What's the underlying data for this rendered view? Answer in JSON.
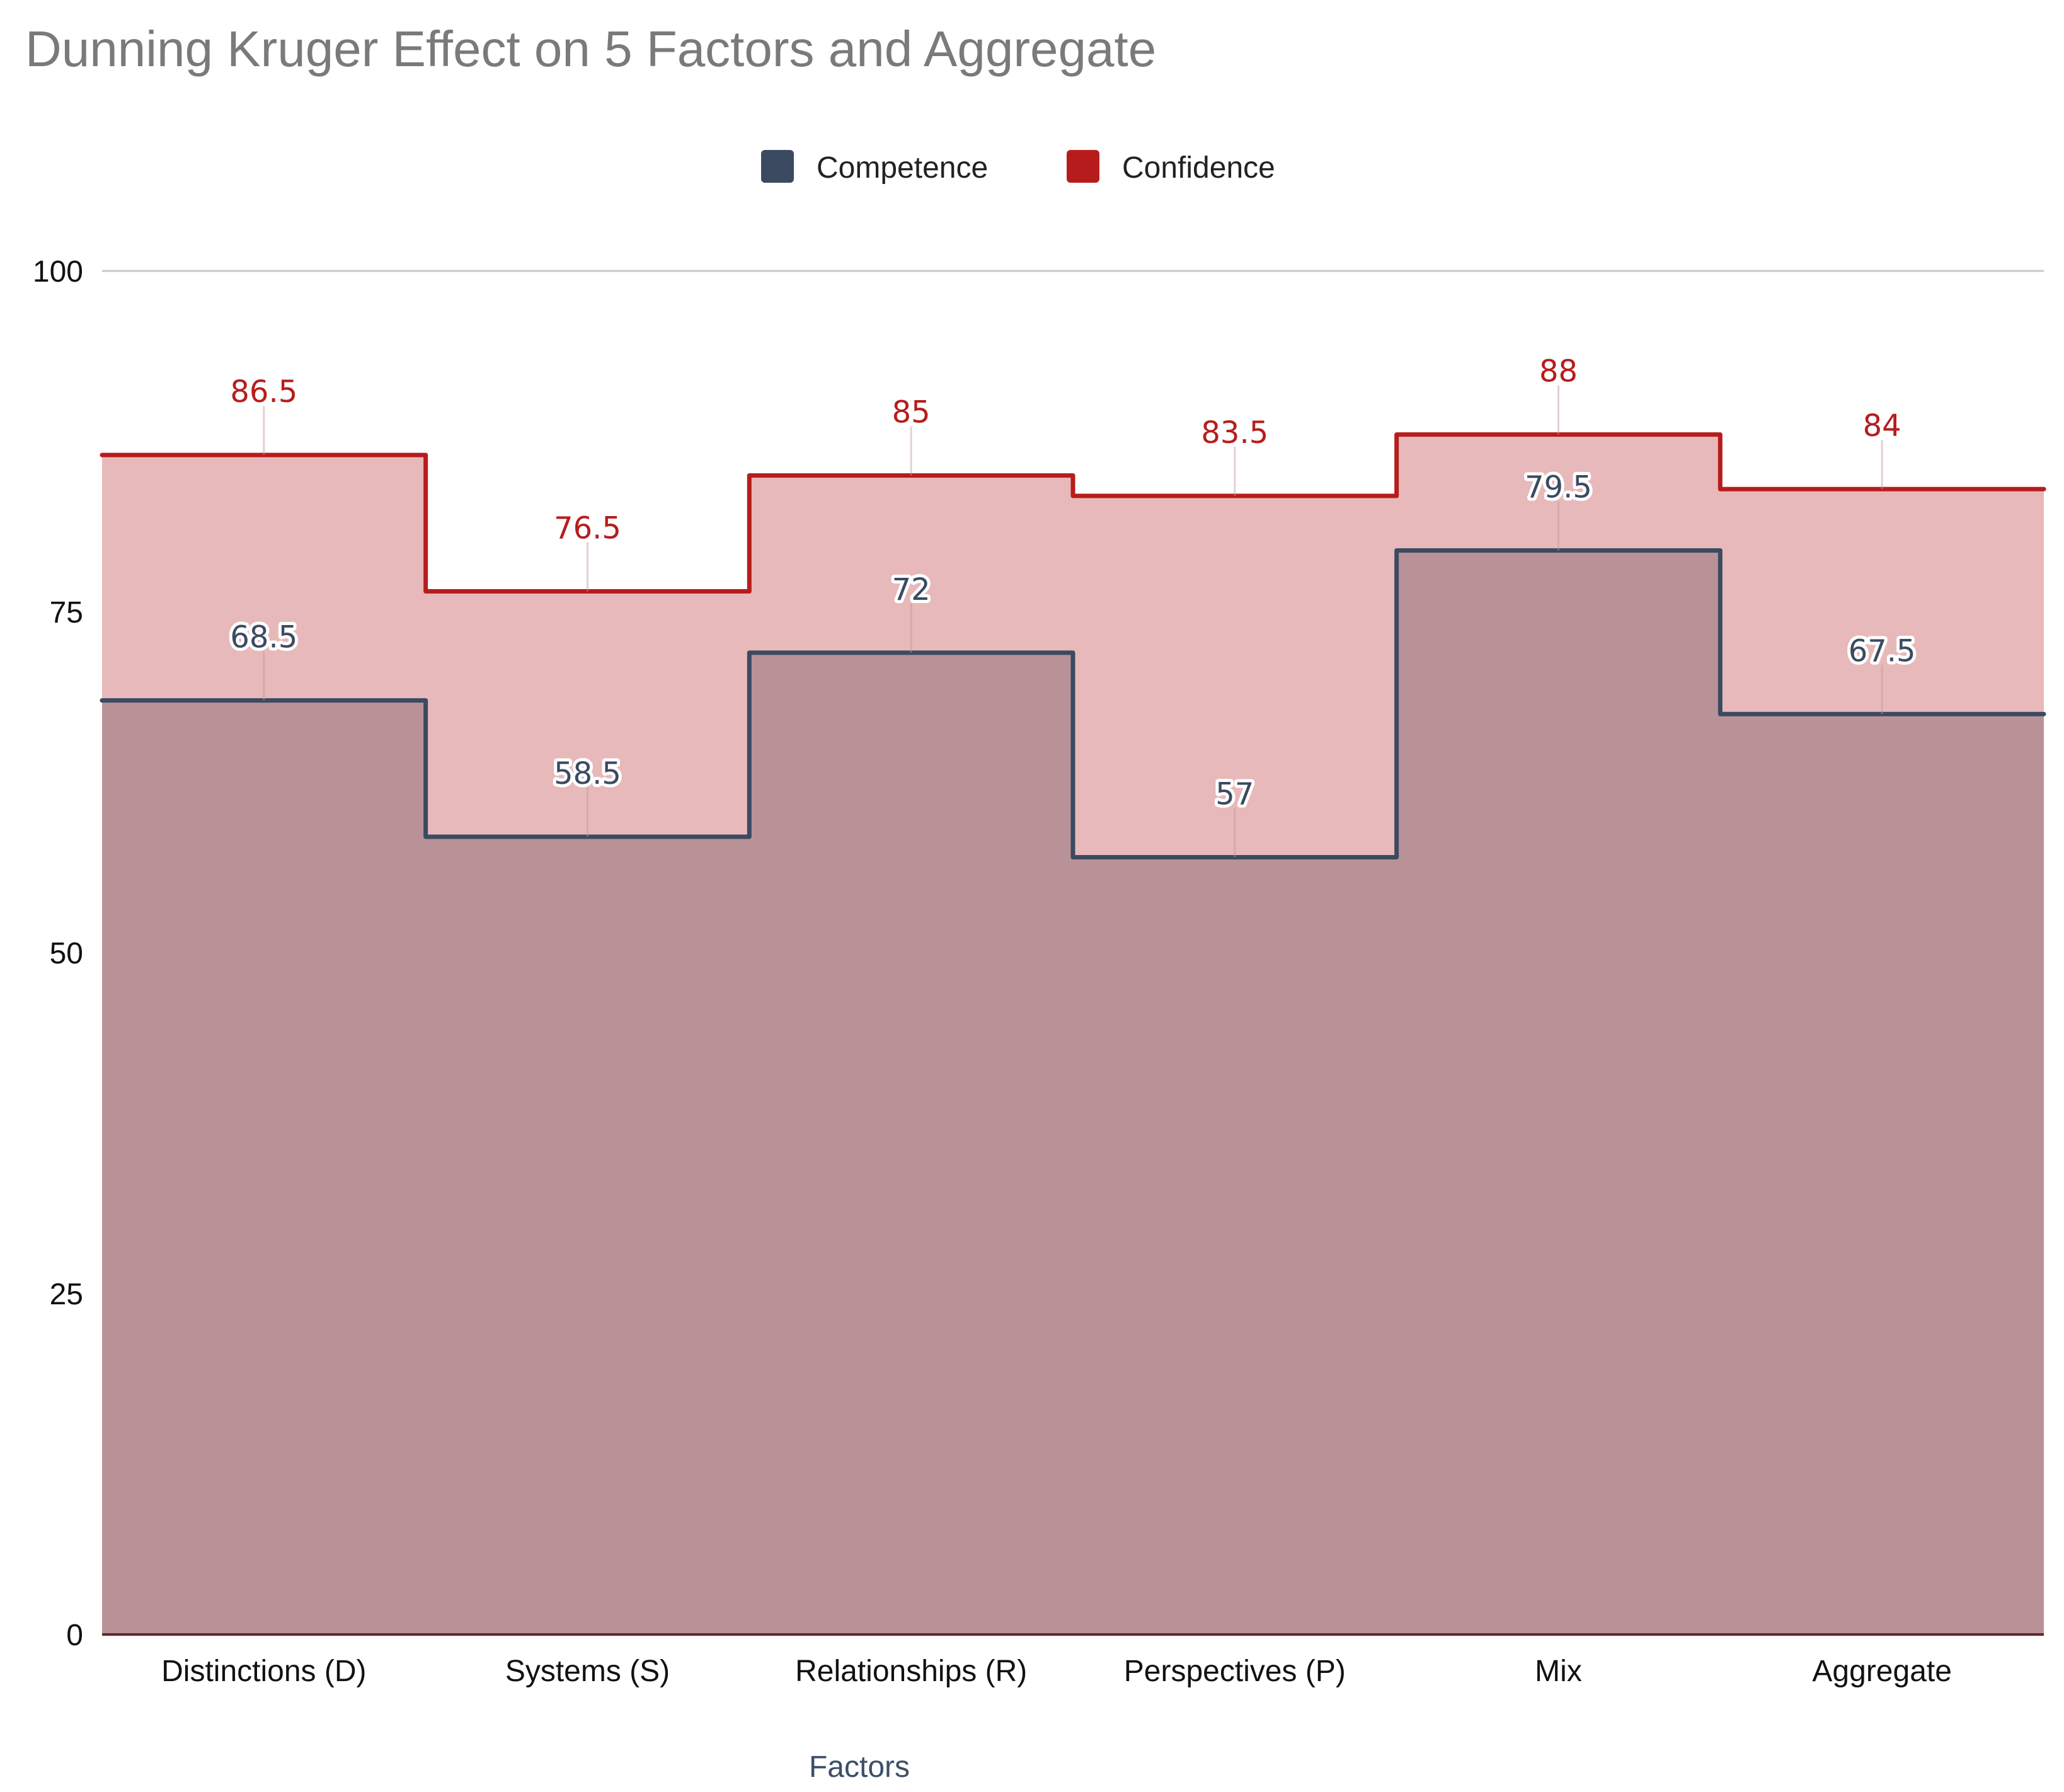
{
  "chart_data": {
    "type": "area",
    "step": true,
    "title": "Dunning Kruger Effect on 5 Factors and Aggregate",
    "xlabel": "Factors",
    "ylabel": "",
    "ylim": [
      0,
      100
    ],
    "yticks": [
      0,
      25,
      50,
      75,
      100
    ],
    "grid": true,
    "legend_position": "top-center",
    "categories": [
      "Distinctions (D)",
      "Systems (S)",
      "Relationships (R)",
      "Perspectives (P)",
      "Mix",
      "Aggregate"
    ],
    "series": [
      {
        "name": "Competence",
        "color": "#3b4a61",
        "fill": "#b99297",
        "values": [
          68.5,
          58.5,
          72,
          57,
          79.5,
          67.5
        ],
        "labels": [
          "68.5",
          "58.5",
          "72",
          "57",
          "79.5",
          "67.5"
        ]
      },
      {
        "name": "Confidence",
        "color": "#b71c1c",
        "fill": "#e8b9ba",
        "values": [
          86.5,
          76.5,
          85,
          83.5,
          88,
          84
        ],
        "labels": [
          "86.5",
          "76.5",
          "85",
          "83.5",
          "88",
          "84"
        ]
      }
    ]
  }
}
